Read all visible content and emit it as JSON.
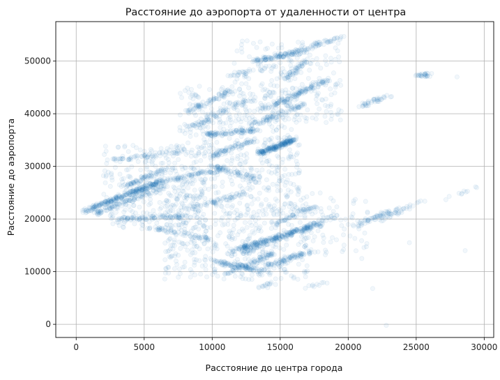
{
  "chart_data": {
    "type": "scatter",
    "title": "Расстояние до аэропорта от удаленности от центра",
    "xlabel": "Расстояние до центра города",
    "ylabel": "Расстояние до аэропорта",
    "xlim": [
      -1500,
      30700
    ],
    "ylim": [
      -2500,
      57500
    ],
    "xticks": [
      0,
      5000,
      10000,
      15000,
      20000,
      25000,
      30000
    ],
    "yticks": [
      0,
      10000,
      20000,
      30000,
      40000,
      50000
    ],
    "grid": true,
    "point_color": "#1f77b4",
    "point_alpha": 0.06,
    "series": [
      {
        "segments": [
          {
            "x0": 600,
            "y0": 21500,
            "x1": 6300,
            "y1": 27200,
            "n": 260
          },
          {
            "x0": 1400,
            "y0": 21000,
            "x1": 6600,
            "y1": 26200,
            "n": 120
          },
          {
            "x0": 3500,
            "y0": 26000,
            "x1": 6500,
            "y1": 29500,
            "n": 70
          },
          {
            "x0": 2500,
            "y0": 31000,
            "x1": 8000,
            "y1": 33000,
            "n": 60
          },
          {
            "x0": 3000,
            "y0": 20000,
            "x1": 8000,
            "y1": 20500,
            "n": 80
          },
          {
            "x0": 5500,
            "y0": 18500,
            "x1": 10000,
            "y1": 16000,
            "n": 60
          },
          {
            "x0": 6000,
            "y0": 27000,
            "x1": 11000,
            "y1": 29500,
            "n": 80
          },
          {
            "x0": 8500,
            "y0": 22000,
            "x1": 12500,
            "y1": 25000,
            "n": 60
          },
          {
            "x0": 8000,
            "y0": 40000,
            "x1": 11500,
            "y1": 44500,
            "n": 70
          },
          {
            "x0": 8200,
            "y0": 37000,
            "x1": 12500,
            "y1": 42500,
            "n": 70
          },
          {
            "x0": 9500,
            "y0": 36000,
            "x1": 13500,
            "y1": 37000,
            "n": 100
          },
          {
            "x0": 10000,
            "y0": 32000,
            "x1": 13000,
            "y1": 35000,
            "n": 80
          },
          {
            "x0": 10000,
            "y0": 30000,
            "x1": 13500,
            "y1": 27500,
            "n": 60
          },
          {
            "x0": 10000,
            "y0": 12000,
            "x1": 14000,
            "y1": 10000,
            "n": 100
          },
          {
            "x0": 11000,
            "y0": 9500,
            "x1": 14500,
            "y1": 13500,
            "n": 80
          },
          {
            "x0": 11500,
            "y0": 14000,
            "x1": 18000,
            "y1": 19000,
            "n": 200
          },
          {
            "x0": 12000,
            "y0": 13500,
            "x1": 19000,
            "y1": 20500,
            "n": 120
          },
          {
            "x0": 13500,
            "y0": 7000,
            "x1": 14500,
            "y1": 7800,
            "n": 15
          },
          {
            "x0": 17000,
            "y0": 7000,
            "x1": 18500,
            "y1": 8000,
            "n": 10
          },
          {
            "x0": 14000,
            "y0": 11000,
            "x1": 17500,
            "y1": 14000,
            "n": 80
          },
          {
            "x0": 14500,
            "y0": 19000,
            "x1": 17500,
            "y1": 22500,
            "n": 60
          },
          {
            "x0": 13500,
            "y0": 32500,
            "x1": 16000,
            "y1": 35000,
            "n": 200
          },
          {
            "x0": 14000,
            "y0": 41000,
            "x1": 18500,
            "y1": 46500,
            "n": 120
          },
          {
            "x0": 13000,
            "y0": 38000,
            "x1": 17000,
            "y1": 42000,
            "n": 80
          },
          {
            "x0": 13000,
            "y0": 50000,
            "x1": 17000,
            "y1": 52000,
            "n": 100
          },
          {
            "x0": 15500,
            "y0": 46500,
            "x1": 17000,
            "y1": 50500,
            "n": 50
          },
          {
            "x0": 15000,
            "y0": 51000,
            "x1": 19500,
            "y1": 54500,
            "n": 60
          },
          {
            "x0": 11000,
            "y0": 47000,
            "x1": 14500,
            "y1": 49000,
            "n": 30
          },
          {
            "x0": 20500,
            "y0": 18500,
            "x1": 23000,
            "y1": 21500,
            "n": 50
          },
          {
            "x0": 21000,
            "y0": 41500,
            "x1": 23000,
            "y1": 43500,
            "n": 40
          },
          {
            "x0": 22000,
            "y0": 19500,
            "x1": 25500,
            "y1": 23500,
            "n": 40
          },
          {
            "x0": 25000,
            "y0": 47000,
            "x1": 26000,
            "y1": 47500,
            "n": 25
          },
          {
            "x0": 27000,
            "y0": 23500,
            "x1": 29500,
            "y1": 26000,
            "n": 10
          }
        ],
        "clusters": [
          {
            "x0": 2000,
            "x1": 9500,
            "y0": 18000,
            "y1": 34000,
            "n": 300
          },
          {
            "x0": 6500,
            "x1": 17000,
            "y0": 8500,
            "y1": 24000,
            "n": 450
          },
          {
            "x0": 7500,
            "x1": 16500,
            "y0": 24000,
            "y1": 45500,
            "n": 450
          },
          {
            "x0": 11500,
            "x1": 19500,
            "y0": 38000,
            "y1": 54000,
            "n": 200
          },
          {
            "x0": 16500,
            "x1": 21500,
            "y0": 13000,
            "y1": 25000,
            "n": 80
          }
        ],
        "points": [
          {
            "x": 22800,
            "y": -200
          },
          {
            "x": 28600,
            "y": 14000
          },
          {
            "x": 28000,
            "y": 47000
          },
          {
            "x": 21800,
            "y": 6800
          },
          {
            "x": 24500,
            "y": 15500
          },
          {
            "x": 21000,
            "y": 12500
          },
          {
            "x": 25600,
            "y": 47300
          },
          {
            "x": 25800,
            "y": 47200
          },
          {
            "x": 26000,
            "y": 47100
          }
        ]
      }
    ]
  }
}
